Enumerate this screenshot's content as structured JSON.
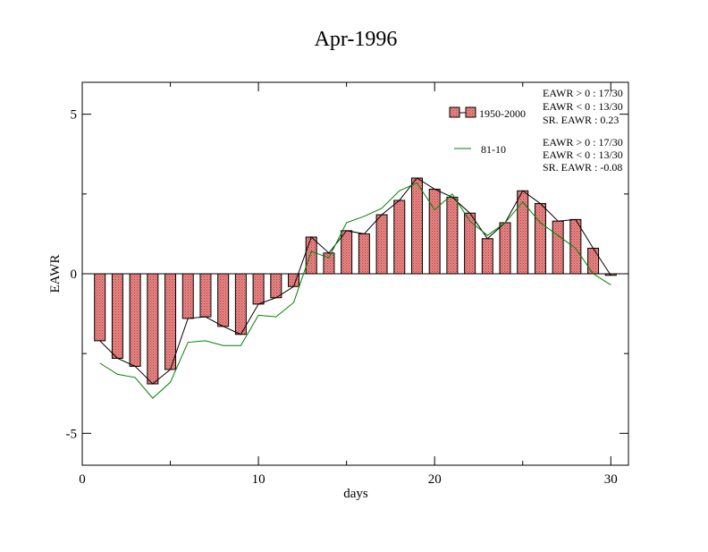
{
  "chart_data": {
    "type": "bar",
    "title": "Apr-1996",
    "xlabel": "days",
    "ylabel": "EAWR",
    "xlim": [
      0,
      31
    ],
    "ylim": [
      -6,
      6
    ],
    "xticks": [
      0,
      10,
      20,
      30
    ],
    "yticks": [
      -5,
      0,
      5
    ],
    "x": [
      1,
      2,
      3,
      4,
      5,
      6,
      7,
      8,
      9,
      10,
      11,
      12,
      13,
      14,
      15,
      16,
      17,
      18,
      19,
      20,
      21,
      22,
      23,
      24,
      25,
      26,
      27,
      28,
      29,
      30
    ],
    "series": [
      {
        "name": "1950-2000",
        "kind": "bar",
        "color": "#e87878",
        "values": [
          -2.1,
          -2.65,
          -2.9,
          -3.45,
          -3.0,
          -1.4,
          -1.35,
          -1.65,
          -1.9,
          -0.95,
          -0.75,
          -0.4,
          1.15,
          0.65,
          1.35,
          1.25,
          1.85,
          2.3,
          3.0,
          2.65,
          2.4,
          1.9,
          1.1,
          1.6,
          2.6,
          2.2,
          1.65,
          1.7,
          0.8,
          -0.05
        ]
      },
      {
        "name": "81-10",
        "kind": "line",
        "color": "#008000",
        "values": [
          -2.8,
          -3.15,
          -3.25,
          -3.9,
          -3.4,
          -2.15,
          -2.1,
          -2.25,
          -2.25,
          -1.3,
          -1.35,
          -0.9,
          0.7,
          0.5,
          1.6,
          1.8,
          2.05,
          2.6,
          2.85,
          2.0,
          2.5,
          1.65,
          1.2,
          1.6,
          2.25,
          1.6,
          1.2,
          0.8,
          0.0,
          -0.35
        ]
      }
    ],
    "legend": {
      "position": "top-right",
      "entries": [
        {
          "label": "1950-2000",
          "stats": [
            "EAWR > 0 : 17/30",
            "EAWR < 0 : 13/30",
            "SR. EAWR :  0.23"
          ]
        },
        {
          "label": "81-10",
          "stats": [
            "EAWR > 0 : 17/30",
            "EAWR < 0 : 13/30",
            "SR. EAWR : -0.08"
          ]
        }
      ]
    },
    "grid": false
  }
}
